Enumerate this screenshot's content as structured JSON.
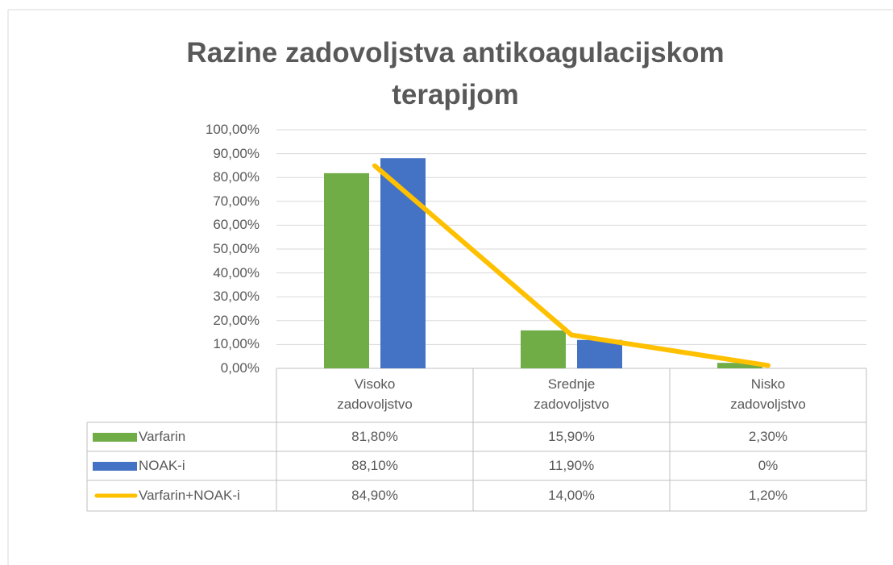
{
  "chart_data": {
    "type": "bar",
    "title": "Razine zadovoljstva antikoagulacijskom terapijom",
    "categories": [
      "Visoko zadovoljstvo",
      "Srednje zadovoljstvo",
      "Nisko zadovoljstvo"
    ],
    "series": [
      {
        "name": "Varfarin",
        "type": "bar",
        "color": "#70ad47",
        "values": [
          81.8,
          15.9,
          2.3
        ],
        "value_labels": [
          "81,80%",
          "15,90%",
          "2,30%"
        ]
      },
      {
        "name": "NOAK-i",
        "type": "bar",
        "color": "#4472c4",
        "values": [
          88.1,
          11.9,
          0
        ],
        "value_labels": [
          "88,10%",
          "11,90%",
          "0%"
        ]
      },
      {
        "name": "Varfarin+NOAK-i",
        "type": "line",
        "color": "#ffc000",
        "values": [
          84.9,
          14,
          1.2
        ],
        "value_labels": [
          "84,90%",
          "14,00%",
          "1,20%"
        ]
      }
    ],
    "ylim": [
      0,
      100
    ],
    "yticks": [
      {
        "value": 0,
        "label": "0,00%"
      },
      {
        "value": 10,
        "label": "10,00%"
      },
      {
        "value": 20,
        "label": "20,00%"
      },
      {
        "value": 30,
        "label": "30,00%"
      },
      {
        "value": 40,
        "label": "40,00%"
      },
      {
        "value": 50,
        "label": "50,00%"
      },
      {
        "value": 60,
        "label": "60,00%"
      },
      {
        "value": 70,
        "label": "70,00%"
      },
      {
        "value": 80,
        "label": "80,00%"
      },
      {
        "value": 90,
        "label": "90,00%"
      },
      {
        "value": 100,
        "label": "100,00%"
      }
    ],
    "grid": true
  }
}
